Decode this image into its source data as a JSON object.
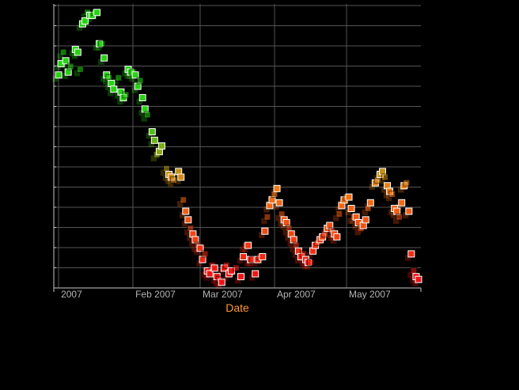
{
  "chart_data": {
    "type": "scatter",
    "title": "",
    "xlabel": "Date",
    "ylabel": "",
    "x_ticks": [
      "2007",
      "Feb 2007",
      "Mar 2007",
      "Apr 2007",
      "May 2007"
    ],
    "x_tick_dates": [
      "2007-01-01",
      "2007-02-01",
      "2007-03-01",
      "2007-04-01",
      "2007-05-01"
    ],
    "xlim": [
      "2006-12-30",
      "2007-06-01"
    ],
    "ylim": [
      0,
      100
    ],
    "grid": true,
    "legend": "none",
    "colors": {
      "background": "#000000",
      "grid": "#555555",
      "axis": "#c8c8c8",
      "tick_label": "#b4b4b4",
      "xlabel": "#ff9a2e",
      "marker_outline": "#ffffff"
    },
    "series": [
      {
        "points": [
          {
            "x": "2007-01-01",
            "y": 75
          },
          {
            "x": "2007-01-02",
            "y": 79
          },
          {
            "x": "2007-01-03",
            "y": 83
          },
          {
            "x": "2007-01-04",
            "y": 80
          },
          {
            "x": "2007-01-05",
            "y": 76
          },
          {
            "x": "2007-01-06",
            "y": 78
          },
          {
            "x": "2007-01-08",
            "y": 84
          },
          {
            "x": "2007-01-09",
            "y": 83
          },
          {
            "x": "2007-01-10",
            "y": 77
          },
          {
            "x": "2007-01-11",
            "y": 93
          },
          {
            "x": "2007-01-12",
            "y": 94
          },
          {
            "x": "2007-01-13",
            "y": 97
          },
          {
            "x": "2007-01-14",
            "y": 96
          },
          {
            "x": "2007-01-15",
            "y": 96
          },
          {
            "x": "2007-01-16",
            "y": 97
          },
          {
            "x": "2007-01-17",
            "y": 97
          },
          {
            "x": "2007-01-18",
            "y": 86
          },
          {
            "x": "2007-01-19",
            "y": 86
          },
          {
            "x": "2007-01-20",
            "y": 81
          },
          {
            "x": "2007-01-21",
            "y": 75
          },
          {
            "x": "2007-01-22",
            "y": 74
          },
          {
            "x": "2007-01-23",
            "y": 72
          },
          {
            "x": "2007-01-24",
            "y": 70
          },
          {
            "x": "2007-01-26",
            "y": 74
          },
          {
            "x": "2007-01-27",
            "y": 69
          },
          {
            "x": "2007-01-28",
            "y": 67
          },
          {
            "x": "2007-01-29",
            "y": 68
          },
          {
            "x": "2007-01-30",
            "y": 77
          },
          {
            "x": "2007-01-31",
            "y": 76
          },
          {
            "x": "2007-02-01",
            "y": 76
          },
          {
            "x": "2007-02-02",
            "y": 75
          },
          {
            "x": "2007-02-03",
            "y": 71
          },
          {
            "x": "2007-02-04",
            "y": 73
          },
          {
            "x": "2007-02-05",
            "y": 67
          },
          {
            "x": "2007-02-06",
            "y": 63
          },
          {
            "x": "2007-02-07",
            "y": 61
          },
          {
            "x": "2007-02-09",
            "y": 55
          },
          {
            "x": "2007-02-10",
            "y": 52
          },
          {
            "x": "2007-02-11",
            "y": 47
          },
          {
            "x": "2007-02-12",
            "y": 48
          },
          {
            "x": "2007-02-13",
            "y": 50
          },
          {
            "x": "2007-02-15",
            "y": 42
          },
          {
            "x": "2007-02-16",
            "y": 40
          },
          {
            "x": "2007-02-17",
            "y": 39
          },
          {
            "x": "2007-02-18",
            "y": 38
          },
          {
            "x": "2007-02-20",
            "y": 41
          },
          {
            "x": "2007-02-21",
            "y": 39
          },
          {
            "x": "2007-02-22",
            "y": 31
          },
          {
            "x": "2007-02-23",
            "y": 27
          },
          {
            "x": "2007-02-24",
            "y": 24
          },
          {
            "x": "2007-02-25",
            "y": 21
          },
          {
            "x": "2007-02-26",
            "y": 19
          },
          {
            "x": "2007-02-27",
            "y": 17
          },
          {
            "x": "2007-02-28",
            "y": 15
          },
          {
            "x": "2007-03-01",
            "y": 14
          },
          {
            "x": "2007-03-02",
            "y": 10
          },
          {
            "x": "2007-03-03",
            "y": 12
          },
          {
            "x": "2007-03-04",
            "y": 6
          },
          {
            "x": "2007-03-05",
            "y": 5
          },
          {
            "x": "2007-03-06",
            "y": 8
          },
          {
            "x": "2007-03-07",
            "y": 7
          },
          {
            "x": "2007-03-08",
            "y": 4
          },
          {
            "x": "2007-03-09",
            "y": 3
          },
          {
            "x": "2007-03-10",
            "y": 2
          },
          {
            "x": "2007-03-11",
            "y": 7
          },
          {
            "x": "2007-03-12",
            "y": 8
          },
          {
            "x": "2007-03-13",
            "y": 5
          },
          {
            "x": "2007-03-14",
            "y": 6
          },
          {
            "x": "2007-03-16",
            "y": 7
          },
          {
            "x": "2007-03-18",
            "y": 4
          },
          {
            "x": "2007-03-19",
            "y": 11
          },
          {
            "x": "2007-03-20",
            "y": 15
          },
          {
            "x": "2007-03-21",
            "y": 15
          },
          {
            "x": "2007-03-22",
            "y": 10
          },
          {
            "x": "2007-03-23",
            "y": 10
          },
          {
            "x": "2007-03-24",
            "y": 5
          },
          {
            "x": "2007-03-25",
            "y": 10
          },
          {
            "x": "2007-03-26",
            "y": 11
          },
          {
            "x": "2007-03-27",
            "y": 11
          },
          {
            "x": "2007-03-28",
            "y": 20
          },
          {
            "x": "2007-03-29",
            "y": 25
          },
          {
            "x": "2007-03-30",
            "y": 29
          },
          {
            "x": "2007-03-31",
            "y": 31
          },
          {
            "x": "2007-04-01",
            "y": 33
          },
          {
            "x": "2007-04-02",
            "y": 35
          },
          {
            "x": "2007-04-03",
            "y": 30
          },
          {
            "x": "2007-04-04",
            "y": 26
          },
          {
            "x": "2007-04-05",
            "y": 24
          },
          {
            "x": "2007-04-06",
            "y": 23
          },
          {
            "x": "2007-04-07",
            "y": 21
          },
          {
            "x": "2007-04-08",
            "y": 19
          },
          {
            "x": "2007-04-09",
            "y": 17
          },
          {
            "x": "2007-04-10",
            "y": 15
          },
          {
            "x": "2007-04-11",
            "y": 13
          },
          {
            "x": "2007-04-12",
            "y": 11
          },
          {
            "x": "2007-04-13",
            "y": 12
          },
          {
            "x": "2007-04-14",
            "y": 10
          },
          {
            "x": "2007-04-15",
            "y": 9
          },
          {
            "x": "2007-04-16",
            "y": 9
          },
          {
            "x": "2007-04-17",
            "y": 13
          },
          {
            "x": "2007-04-18",
            "y": 15
          },
          {
            "x": "2007-04-19",
            "y": 16
          },
          {
            "x": "2007-04-20",
            "y": 17
          },
          {
            "x": "2007-04-21",
            "y": 18
          },
          {
            "x": "2007-04-22",
            "y": 19
          },
          {
            "x": "2007-04-23",
            "y": 21
          },
          {
            "x": "2007-04-24",
            "y": 22
          },
          {
            "x": "2007-04-25",
            "y": 20
          },
          {
            "x": "2007-04-26",
            "y": 19
          },
          {
            "x": "2007-04-27",
            "y": 18
          },
          {
            "x": "2007-04-28",
            "y": 26
          },
          {
            "x": "2007-04-29",
            "y": 29
          },
          {
            "x": "2007-04-30",
            "y": 31
          },
          {
            "x": "2007-05-01",
            "y": 32
          },
          {
            "x": "2007-05-02",
            "y": 32
          },
          {
            "x": "2007-05-03",
            "y": 28
          },
          {
            "x": "2007-05-04",
            "y": 25
          },
          {
            "x": "2007-05-05",
            "y": 25
          },
          {
            "x": "2007-05-06",
            "y": 23
          },
          {
            "x": "2007-05-07",
            "y": 21
          },
          {
            "x": "2007-05-08",
            "y": 22
          },
          {
            "x": "2007-05-09",
            "y": 24
          },
          {
            "x": "2007-05-10",
            "y": 28
          },
          {
            "x": "2007-05-11",
            "y": 30
          },
          {
            "x": "2007-05-13",
            "y": 37
          },
          {
            "x": "2007-05-14",
            "y": 38
          },
          {
            "x": "2007-05-15",
            "y": 40
          },
          {
            "x": "2007-05-16",
            "y": 41
          },
          {
            "x": "2007-05-17",
            "y": 39
          },
          {
            "x": "2007-05-18",
            "y": 36
          },
          {
            "x": "2007-05-19",
            "y": 34
          },
          {
            "x": "2007-05-20",
            "y": 33
          },
          {
            "x": "2007-05-21",
            "y": 28
          },
          {
            "x": "2007-05-22",
            "y": 27
          },
          {
            "x": "2007-05-23",
            "y": 25
          },
          {
            "x": "2007-05-24",
            "y": 30
          },
          {
            "x": "2007-05-25",
            "y": 36
          },
          {
            "x": "2007-05-26",
            "y": 37
          },
          {
            "x": "2007-05-27",
            "y": 27
          },
          {
            "x": "2007-05-28",
            "y": 12
          },
          {
            "x": "2007-05-29",
            "y": 6
          },
          {
            "x": "2007-05-30",
            "y": 4
          },
          {
            "x": "2007-05-31",
            "y": 3
          }
        ]
      }
    ]
  }
}
